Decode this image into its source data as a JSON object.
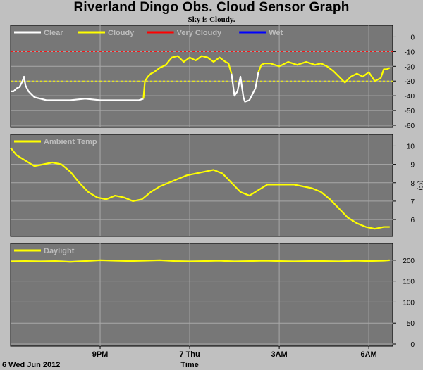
{
  "title": "Riverland Dingo Obs. Cloud Sensor Graph",
  "subtitle": "Sky is Cloudy.",
  "x_axis": {
    "label": "Time",
    "date_label": "6 Wed Jun 2012",
    "tick_labels": [
      "9PM",
      "7 Thu",
      "3AM",
      "6AM"
    ],
    "tick_hours": [
      3,
      6,
      9,
      12
    ],
    "range_hours": [
      0,
      12.8
    ]
  },
  "colors": {
    "panel_bg": "#777777",
    "grid": "#a8a8a8",
    "outer_bg": "#c0c0c0",
    "clear": "#ffffff",
    "cloudy": "#ffff00",
    "very_cloudy": "#ff0000",
    "wet": "#0000ff"
  },
  "chart_data": [
    {
      "type": "line",
      "name": "cloud",
      "legend": [
        {
          "label": "Clear",
          "color": "#ffffff"
        },
        {
          "label": "Cloudy",
          "color": "#ffff00"
        },
        {
          "label": "Very Cloudy",
          "color": "#ff0000"
        },
        {
          "label": "Wet",
          "color": "#0000ff"
        }
      ],
      "ylabel": "",
      "ylim": [
        -60,
        5
      ],
      "yticks": [
        0,
        -10,
        -20,
        -30,
        -40,
        -50,
        -60
      ],
      "thresholds": [
        {
          "value": -10,
          "color": "#ff0000"
        },
        {
          "value": -30,
          "color": "#ffff00"
        }
      ],
      "x": [
        0,
        0.1,
        0.2,
        0.3,
        0.4,
        0.45,
        0.5,
        0.6,
        0.7,
        0.8,
        1.0,
        1.2,
        1.5,
        2.0,
        2.5,
        3.0,
        3.5,
        4.0,
        4.3,
        4.45,
        4.5,
        4.6,
        4.7,
        4.8,
        5.0,
        5.2,
        5.4,
        5.6,
        5.8,
        6.0,
        6.2,
        6.4,
        6.6,
        6.8,
        7.0,
        7.2,
        7.3,
        7.4,
        7.5,
        7.6,
        7.7,
        7.75,
        7.8,
        7.85,
        8.0,
        8.2,
        8.3,
        8.4,
        8.5,
        8.7,
        9.0,
        9.3,
        9.6,
        9.9,
        10.2,
        10.4,
        10.6,
        10.8,
        11.0,
        11.2,
        11.4,
        11.6,
        11.8,
        12.0,
        12.2,
        12.4,
        12.5,
        12.6,
        12.7
      ],
      "y": [
        -37,
        -37,
        -35,
        -34,
        -30,
        -27,
        -33,
        -37,
        -39,
        -41,
        -42,
        -43,
        -43,
        -43,
        -42,
        -43,
        -43,
        -43,
        -43,
        -42,
        -30,
        -27,
        -25,
        -24,
        -21,
        -19,
        -14,
        -13,
        -17,
        -14,
        -16,
        -13,
        -14,
        -17,
        -14,
        -17,
        -18,
        -25,
        -40,
        -37,
        -27,
        -34,
        -41,
        -44,
        -43,
        -35,
        -24,
        -19,
        -18,
        -18,
        -20,
        -17,
        -19,
        -17,
        -19,
        -18,
        -20,
        -23,
        -27,
        -31,
        -27,
        -25,
        -27,
        -24,
        -30,
        -28,
        -22,
        -22,
        -21
      ],
      "series_names": [
        "Clear",
        "Cloudy"
      ],
      "segments": [
        {
          "series": "Clear",
          "from": 0,
          "to": 4.45
        },
        {
          "series": "Cloudy",
          "from": 4.45,
          "to": 7.4
        },
        {
          "series": "Clear",
          "from": 7.4,
          "to": 8.3
        },
        {
          "series": "Cloudy",
          "from": 8.3,
          "to": 12.7
        }
      ]
    },
    {
      "type": "line",
      "name": "ambient",
      "series": [
        {
          "name": "Ambient Temp",
          "color": "#ffff00"
        }
      ],
      "ylabel": "(C)",
      "ylim": [
        5.2,
        10.4
      ],
      "yticks": [
        10,
        9,
        8,
        7,
        6
      ],
      "x": [
        0,
        0.2,
        0.5,
        0.8,
        1.1,
        1.4,
        1.7,
        2.0,
        2.3,
        2.6,
        2.9,
        3.2,
        3.5,
        3.8,
        4.1,
        4.4,
        4.7,
        5.0,
        5.3,
        5.6,
        5.9,
        6.2,
        6.5,
        6.8,
        7.1,
        7.4,
        7.7,
        8.0,
        8.3,
        8.6,
        8.9,
        9.2,
        9.5,
        9.8,
        10.1,
        10.4,
        10.7,
        11.0,
        11.3,
        11.6,
        11.9,
        12.2,
        12.5,
        12.7
      ],
      "y": [
        9.9,
        9.5,
        9.2,
        8.9,
        9.0,
        9.1,
        9.0,
        8.6,
        8.0,
        7.5,
        7.2,
        7.1,
        7.3,
        7.2,
        7.0,
        7.1,
        7.5,
        7.8,
        8.0,
        8.2,
        8.4,
        8.5,
        8.6,
        8.7,
        8.5,
        8.0,
        7.5,
        7.3,
        7.6,
        7.9,
        7.9,
        7.9,
        7.9,
        7.8,
        7.7,
        7.5,
        7.1,
        6.6,
        6.1,
        5.8,
        5.6,
        5.5,
        5.6,
        5.6
      ]
    },
    {
      "type": "line",
      "name": "daylight",
      "series": [
        {
          "name": "Daylight",
          "color": "#ffff00"
        }
      ],
      "ylabel": "",
      "ylim": [
        0,
        230
      ],
      "yticks": [
        200,
        150,
        100,
        50,
        0
      ],
      "x": [
        0,
        0.5,
        1.0,
        1.5,
        2.0,
        2.5,
        3.0,
        3.5,
        4.0,
        4.5,
        5.0,
        5.5,
        6.0,
        6.5,
        7.0,
        7.5,
        8.0,
        8.5,
        9.0,
        9.5,
        10.0,
        10.5,
        11.0,
        11.5,
        12.0,
        12.5,
        12.7
      ],
      "y": [
        197,
        198,
        197,
        198,
        196,
        198,
        200,
        199,
        198,
        199,
        200,
        198,
        197,
        198,
        199,
        197,
        198,
        199,
        198,
        197,
        198,
        198,
        197,
        199,
        198,
        199,
        200
      ]
    }
  ]
}
